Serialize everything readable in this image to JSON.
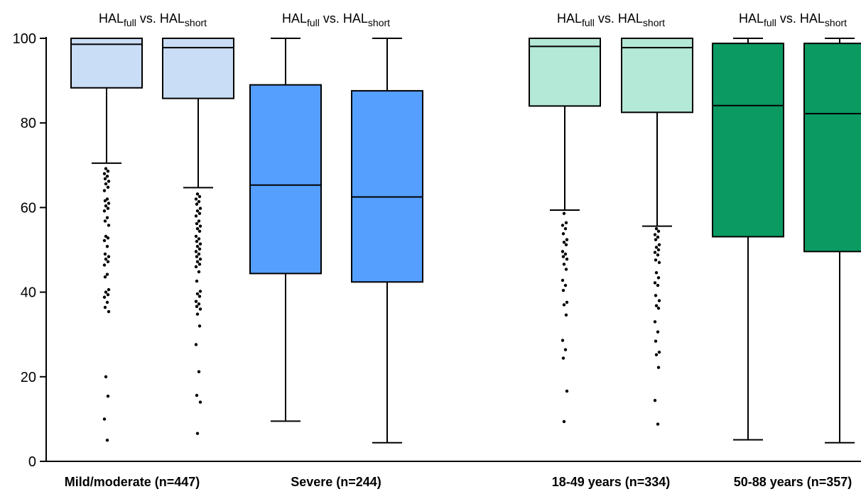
{
  "chart_data": {
    "type": "box",
    "ylim": [
      0,
      100
    ],
    "y_ticks": [
      0,
      20,
      40,
      60,
      80,
      100
    ],
    "group_headers": [
      {
        "main1": "HAL",
        "sub1": "full",
        "mid": " vs. ",
        "main2": "HAL",
        "sub2": "short"
      },
      {
        "main1": "HAL",
        "sub1": "full",
        "mid": " vs. ",
        "main2": "HAL",
        "sub2": "short"
      },
      {
        "main1": "HAL",
        "sub1": "full",
        "mid": " vs. ",
        "main2": "HAL",
        "sub2": "short"
      },
      {
        "main1": "HAL",
        "sub1": "full",
        "mid": " vs. ",
        "main2": "HAL",
        "sub2": "short"
      }
    ],
    "group_labels": [
      "Mild/moderate (n=447)",
      "Severe (n=244)",
      "18-49 years (n=334)",
      "50-88 years (n=357)"
    ],
    "colors": {
      "mild": "#c9ddf6",
      "severe": "#559ffe",
      "young": "#b4e8d7",
      "old": "#0b9b62"
    },
    "boxes": [
      {
        "group": 0,
        "color": "mild",
        "whisker_low": 70.5,
        "q1": 88.3,
        "median": 98.6,
        "q3": 100,
        "whisker_high": 100,
        "outliers": [
          69.2,
          68.6,
          68.0,
          67.4,
          66.8,
          66.2,
          65.6,
          64.8,
          64.0,
          62.0,
          61.6,
          61.0,
          60.4,
          59.8,
          59.2,
          57.6,
          56.8,
          55.8,
          53.2,
          52.8,
          52.2,
          50.8,
          49.0,
          48.4,
          47.8,
          47.2,
          46.4,
          44.2,
          43.6,
          40.6,
          40.0,
          39.4,
          38.8,
          37.6,
          36.4,
          35.4,
          20.0,
          15.4,
          10.0,
          5.0
        ]
      },
      {
        "group": 0,
        "color": "mild",
        "whisker_low": 64.7,
        "q1": 85.8,
        "median": 97.8,
        "q3": 100,
        "whisker_high": 100,
        "outliers": [
          63.2,
          62.6,
          62.0,
          61.4,
          60.8,
          59.8,
          59.2,
          58.6,
          58.0,
          56.8,
          56.2,
          55.6,
          55.0,
          54.4,
          53.2,
          52.6,
          52.0,
          51.4,
          50.8,
          50.2,
          49.6,
          49.0,
          48.4,
          47.8,
          47.2,
          46.6,
          46.0,
          44.8,
          42.6,
          40.2,
          39.6,
          39.0,
          37.8,
          37.2,
          36.6,
          36.0,
          34.8,
          32.0,
          27.6,
          21.2,
          15.6,
          14.0,
          6.6
        ]
      },
      {
        "group": 1,
        "color": "severe",
        "whisker_low": 9.5,
        "q1": 44.4,
        "median": 65.3,
        "q3": 89.0,
        "whisker_high": 100,
        "outliers": []
      },
      {
        "group": 1,
        "color": "severe",
        "whisker_low": 4.4,
        "q1": 42.4,
        "median": 62.5,
        "q3": 87.6,
        "whisker_high": 100,
        "outliers": []
      },
      {
        "group": 2,
        "color": "young",
        "whisker_low": 59.4,
        "q1": 84.0,
        "median": 98.1,
        "q3": 100,
        "whisker_high": 100,
        "outliers": [
          58.6,
          56.4,
          55.8,
          55.0,
          53.8,
          52.4,
          51.8,
          51.2,
          49.6,
          49.0,
          48.4,
          47.8,
          46.6,
          45.4,
          42.8,
          41.6,
          40.4,
          37.6,
          37.0,
          34.6,
          28.6,
          26.4,
          24.4,
          16.6,
          9.4
        ]
      },
      {
        "group": 2,
        "color": "young",
        "whisker_low": 55.6,
        "q1": 82.5,
        "median": 97.8,
        "q3": 100,
        "whisker_high": 100,
        "outliers": [
          55.0,
          54.4,
          53.6,
          53.0,
          52.4,
          51.2,
          50.6,
          50.0,
          49.4,
          48.8,
          47.6,
          47.0,
          44.6,
          43.4,
          42.2,
          41.6,
          39.2,
          38.0,
          36.8,
          36.2,
          33.0,
          30.6,
          28.4,
          25.8,
          25.2,
          22.2,
          14.4,
          8.8
        ]
      },
      {
        "group": 3,
        "color": "old",
        "whisker_low": 5.1,
        "q1": 53.1,
        "median": 84.1,
        "q3": 98.8,
        "whisker_high": 100,
        "outliers": []
      },
      {
        "group": 3,
        "color": "old",
        "whisker_low": 4.4,
        "q1": 49.6,
        "median": 82.2,
        "q3": 98.8,
        "whisker_high": 100,
        "outliers": []
      }
    ]
  }
}
